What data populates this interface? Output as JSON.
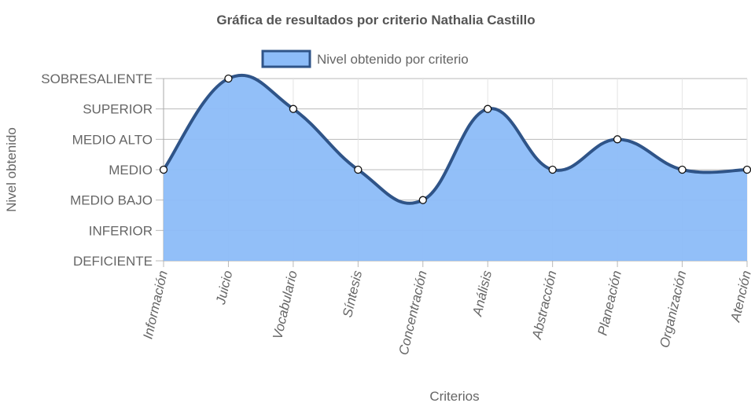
{
  "chart_data": {
    "type": "area",
    "title": "Gráfica de resultados por criterio Nathalia Castillo",
    "xlabel": "Criterios",
    "ylabel": "Nivel obtenido",
    "categories": [
      "Información",
      "Juicio",
      "Vocabulario",
      "Síntesis",
      "Concentración",
      "Análisis",
      "Abstracción",
      "Planeación",
      "Organización",
      "Atención"
    ],
    "y_levels": [
      "DEFICIENTE",
      "INFERIOR",
      "MEDIO BAJO",
      "MEDIO",
      "MEDIO ALTO",
      "SUPERIOR",
      "SOBRESALIENTE"
    ],
    "ylim": [
      0,
      6
    ],
    "grid": true,
    "legend_position": "top-center",
    "series": [
      {
        "name": "Nivel obtenido por criterio",
        "values": [
          3,
          6,
          5,
          3,
          2,
          5,
          3,
          4,
          3,
          3
        ],
        "fill_color": "#8cbcf8",
        "line_color": "#2f5488"
      }
    ]
  }
}
